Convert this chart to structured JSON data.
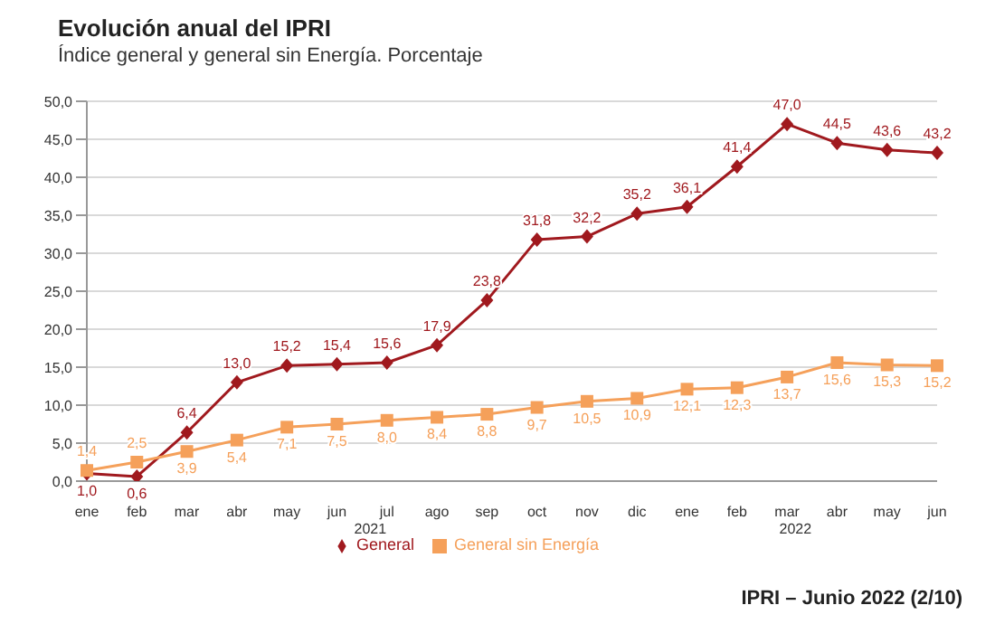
{
  "chart_data": {
    "type": "line",
    "title": "Evolución anual del IPRI",
    "subtitle": "Índice general y general sin Energía. Porcentaje",
    "categories": [
      "ene",
      "feb",
      "mar",
      "abr",
      "may",
      "jun",
      "jul",
      "ago",
      "sep",
      "oct",
      "nov",
      "dic",
      "ene",
      "feb",
      "mar",
      "abr",
      "may",
      "jun"
    ],
    "series": [
      {
        "name": "General",
        "color": "#a0191e",
        "marker": "diamond",
        "values": [
          1.0,
          0.6,
          6.4,
          13.0,
          15.2,
          15.4,
          15.6,
          17.9,
          23.8,
          31.8,
          32.2,
          35.2,
          36.1,
          41.4,
          47.0,
          44.5,
          43.6,
          43.2
        ],
        "value_labels": [
          "1,0",
          "0,6",
          "6,4",
          "13,0",
          "15,2",
          "15,4",
          "15,6",
          "17,9",
          "23,8",
          "31,8",
          "32,2",
          "35,2",
          "36,1",
          "41,4",
          "47,0",
          "44,5",
          "43,6",
          "43,2"
        ]
      },
      {
        "name": "General sin Energía",
        "color": "#f5a05a",
        "marker": "square",
        "values": [
          1.4,
          2.5,
          3.9,
          5.4,
          7.1,
          7.5,
          8.0,
          8.4,
          8.8,
          9.7,
          10.5,
          10.9,
          12.1,
          12.3,
          13.7,
          15.6,
          15.3,
          15.2
        ],
        "value_labels": [
          "1,4",
          "2,5",
          "3,9",
          "5,4",
          "7,1",
          "7,5",
          "8,0",
          "8,4",
          "8,8",
          "9,7",
          "10,5",
          "10,9",
          "12,1",
          "12,3",
          "13,7",
          "15,6",
          "15,3",
          "15,2"
        ]
      }
    ],
    "ylim": [
      0,
      50
    ],
    "yticks": [
      {
        "value": 0,
        "label": "0,0"
      },
      {
        "value": 5,
        "label": "5,0"
      },
      {
        "value": 10,
        "label": "10,0"
      },
      {
        "value": 15,
        "label": "15,0"
      },
      {
        "value": 20,
        "label": "20,0"
      },
      {
        "value": 25,
        "label": "25,0"
      },
      {
        "value": 30,
        "label": "30,0"
      },
      {
        "value": 35,
        "label": "35,0"
      },
      {
        "value": 40,
        "label": "40,0"
      },
      {
        "value": 45,
        "label": "45,0"
      },
      {
        "value": 50,
        "label": "50,0"
      }
    ],
    "grid": "y",
    "legend": "bottom",
    "line_style": "solid",
    "annotations": [
      "2021",
      "2022",
      "IPRI – Junio 2022 (2/10)"
    ]
  }
}
